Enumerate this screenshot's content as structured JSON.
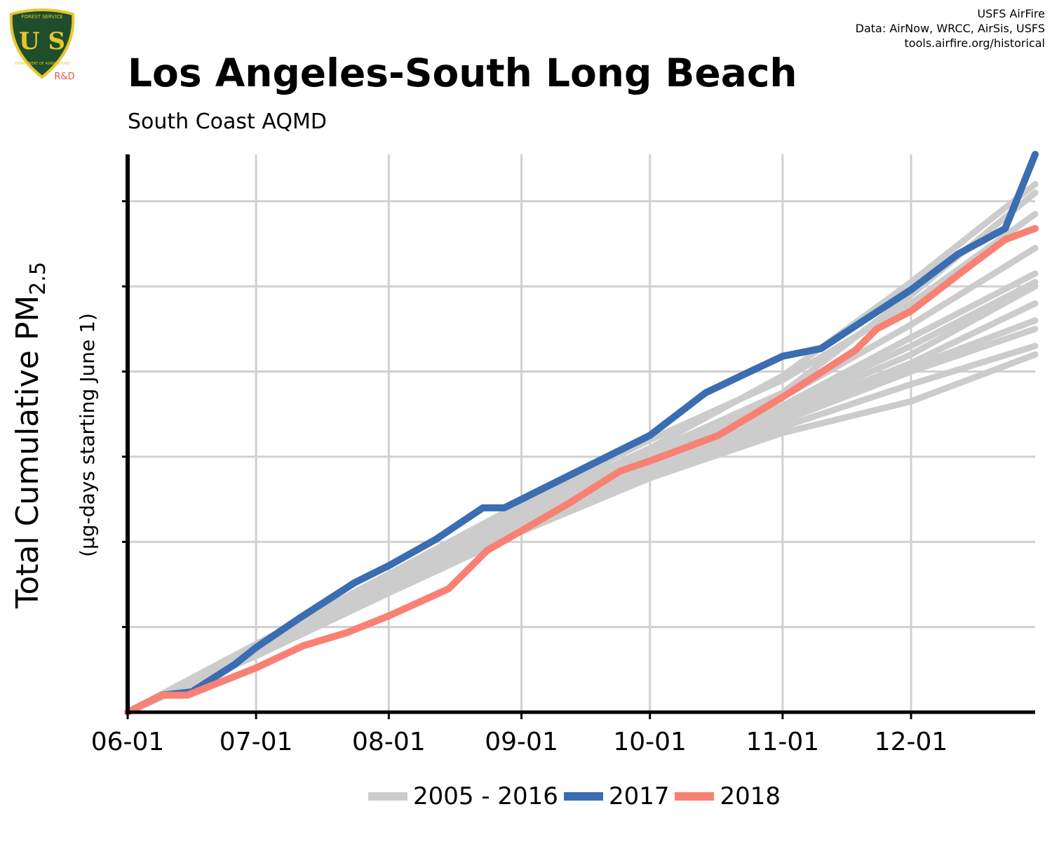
{
  "header": {
    "logo_lines": [
      "FOREST SERVICE",
      "DEPARTMENT OF AGRICULTURE",
      "R&D"
    ],
    "logo_mark": "U S",
    "credit_lines": [
      "USFS AirFire",
      "Data: AirNow, WRCC, AirSis, USFS",
      "tools.airfire.org/historical"
    ],
    "title": "Los Angeles-South Long Beach",
    "subtitle": "South Coast AQMD"
  },
  "colors": {
    "history": "#cccccc",
    "y2017": "#3a6db2",
    "y2018": "#f98173",
    "grid": "#d0d0d0",
    "axis": "#000000",
    "logo_green": "#1f4e2c",
    "logo_gold": "#e8c630",
    "logo_rd": "#e3583e"
  },
  "chart_data": {
    "type": "line",
    "title": "Los Angeles-South Long Beach",
    "subtitle": "South Coast AQMD",
    "ylabel_main": "Total Cumulative PM",
    "ylabel_sub": "2.5",
    "ylabel_units": "(µg-days starting June 1)",
    "x_is_days_since_june_1": false,
    "xlim": [
      "06-01",
      "12-30"
    ],
    "ylim": [
      0,
      6.55
    ],
    "x_ticks": [
      "06-01",
      "07-01",
      "08-01",
      "09-01",
      "10-01",
      "11-01",
      "12-01"
    ],
    "x_tick_days": [
      0,
      30,
      61,
      92,
      122,
      153,
      183
    ],
    "y_tick_values": [
      1,
      2,
      3,
      4,
      5,
      6
    ],
    "y_tick_labels_shown": false,
    "grid": true,
    "legend_position": "bottom",
    "legend": [
      "2005 - 2016",
      "2017",
      "2018"
    ],
    "series": [
      {
        "name": "2005 - 2016",
        "group": "history",
        "points": [
          [
            0,
            0
          ],
          [
            30,
            0.76
          ],
          [
            61,
            1.6
          ],
          [
            92,
            2.4
          ],
          [
            122,
            3.1
          ],
          [
            153,
            3.95
          ],
          [
            183,
            5.05
          ],
          [
            212,
            6.2
          ]
        ]
      },
      {
        "name": "2005 - 2016",
        "group": "history",
        "points": [
          [
            0,
            0
          ],
          [
            30,
            0.74
          ],
          [
            61,
            1.52
          ],
          [
            92,
            2.32
          ],
          [
            122,
            3.0
          ],
          [
            153,
            3.7
          ],
          [
            183,
            4.55
          ],
          [
            212,
            5.45
          ]
        ]
      },
      {
        "name": "2005 - 2016",
        "group": "history",
        "points": [
          [
            0,
            0
          ],
          [
            30,
            0.8
          ],
          [
            61,
            1.62
          ],
          [
            92,
            2.45
          ],
          [
            122,
            3.2
          ],
          [
            153,
            3.9
          ],
          [
            183,
            4.8
          ],
          [
            212,
            5.85
          ]
        ]
      },
      {
        "name": "2005 - 2016",
        "group": "history",
        "points": [
          [
            0,
            0
          ],
          [
            30,
            0.72
          ],
          [
            61,
            1.48
          ],
          [
            92,
            2.28
          ],
          [
            122,
            3.05
          ],
          [
            153,
            3.55
          ],
          [
            183,
            4.2
          ],
          [
            212,
            5.0
          ]
        ]
      },
      {
        "name": "2005 - 2016",
        "group": "history",
        "points": [
          [
            0,
            0
          ],
          [
            30,
            0.7
          ],
          [
            61,
            1.45
          ],
          [
            92,
            2.2
          ],
          [
            122,
            2.85
          ],
          [
            153,
            3.45
          ],
          [
            183,
            4.05
          ],
          [
            212,
            4.6
          ]
        ]
      },
      {
        "name": "2005 - 2016",
        "group": "history",
        "points": [
          [
            0,
            0
          ],
          [
            30,
            0.68
          ],
          [
            61,
            1.43
          ],
          [
            92,
            2.18
          ],
          [
            122,
            2.82
          ],
          [
            153,
            3.42
          ],
          [
            183,
            4.0
          ],
          [
            212,
            4.5
          ]
        ]
      },
      {
        "name": "2005 - 2016",
        "group": "history",
        "points": [
          [
            0,
            0
          ],
          [
            30,
            0.7
          ],
          [
            61,
            1.45
          ],
          [
            92,
            2.15
          ],
          [
            122,
            2.75
          ],
          [
            153,
            3.35
          ],
          [
            183,
            3.85
          ],
          [
            212,
            4.3
          ]
        ]
      },
      {
        "name": "2005 - 2016",
        "group": "history",
        "points": [
          [
            0,
            0
          ],
          [
            30,
            0.66
          ],
          [
            61,
            1.4
          ],
          [
            92,
            2.12
          ],
          [
            122,
            2.75
          ],
          [
            153,
            3.28
          ],
          [
            183,
            3.65
          ],
          [
            212,
            4.2
          ]
        ]
      },
      {
        "name": "2005 - 2016",
        "group": "history",
        "points": [
          [
            0,
            0
          ],
          [
            30,
            0.74
          ],
          [
            61,
            1.5
          ],
          [
            92,
            2.25
          ],
          [
            122,
            2.9
          ],
          [
            153,
            3.5
          ],
          [
            183,
            4.1
          ],
          [
            212,
            4.8
          ]
        ]
      },
      {
        "name": "2005 - 2016",
        "group": "history",
        "points": [
          [
            0,
            0
          ],
          [
            30,
            0.75
          ],
          [
            61,
            1.55
          ],
          [
            92,
            2.3
          ],
          [
            122,
            2.95
          ],
          [
            153,
            3.6
          ],
          [
            183,
            4.3
          ],
          [
            212,
            5.05
          ]
        ]
      },
      {
        "name": "2005 - 2016",
        "group": "history",
        "points": [
          [
            0,
            0
          ],
          [
            30,
            0.78
          ],
          [
            61,
            1.58
          ],
          [
            92,
            2.35
          ],
          [
            122,
            3.05
          ],
          [
            153,
            3.75
          ],
          [
            183,
            4.9
          ],
          [
            212,
            6.1
          ]
        ]
      },
      {
        "name": "2005 - 2016",
        "group": "history",
        "points": [
          [
            0,
            0
          ],
          [
            30,
            0.72
          ],
          [
            61,
            1.5
          ],
          [
            92,
            2.28
          ],
          [
            122,
            2.95
          ],
          [
            153,
            3.6
          ],
          [
            183,
            4.4
          ],
          [
            212,
            5.15
          ]
        ]
      },
      {
        "name": "2017",
        "group": "y2017",
        "points": [
          [
            0,
            0
          ],
          [
            8,
            0.2
          ],
          [
            15,
            0.24
          ],
          [
            25,
            0.56
          ],
          [
            30,
            0.76
          ],
          [
            40,
            1.1
          ],
          [
            53,
            1.52
          ],
          [
            61,
            1.72
          ],
          [
            72,
            2.03
          ],
          [
            83,
            2.4
          ],
          [
            88,
            2.4
          ],
          [
            92,
            2.5
          ],
          [
            110,
            2.95
          ],
          [
            122,
            3.25
          ],
          [
            135,
            3.75
          ],
          [
            145,
            3.99
          ],
          [
            153,
            4.18
          ],
          [
            162,
            4.27
          ],
          [
            175,
            4.7
          ],
          [
            183,
            4.96
          ],
          [
            194,
            5.38
          ],
          [
            205,
            5.68
          ],
          [
            212,
            6.55
          ]
        ]
      },
      {
        "name": "2018",
        "group": "y2018",
        "points": [
          [
            0,
            0
          ],
          [
            8,
            0.2
          ],
          [
            14,
            0.2
          ],
          [
            30,
            0.52
          ],
          [
            41,
            0.78
          ],
          [
            51,
            0.93
          ],
          [
            61,
            1.13
          ],
          [
            75,
            1.45
          ],
          [
            84,
            1.9
          ],
          [
            92,
            2.13
          ],
          [
            103,
            2.45
          ],
          [
            115,
            2.83
          ],
          [
            122,
            2.95
          ],
          [
            138,
            3.25
          ],
          [
            153,
            3.7
          ],
          [
            170,
            4.25
          ],
          [
            175,
            4.5
          ],
          [
            183,
            4.71
          ],
          [
            197,
            5.25
          ],
          [
            205,
            5.55
          ],
          [
            212,
            5.68
          ]
        ]
      }
    ]
  }
}
